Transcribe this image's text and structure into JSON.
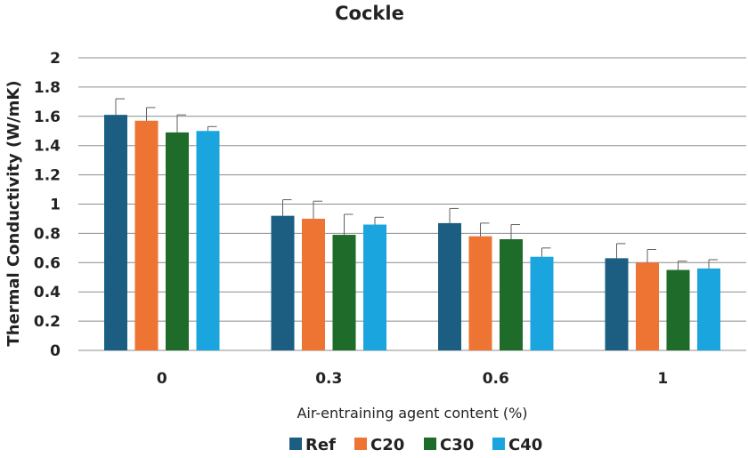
{
  "chart_data": {
    "type": "bar",
    "title": "Cockle",
    "xlabel": "Air-entraining agent content (%)",
    "ylabel": "Thermal Conductivity (W/mK)",
    "ylim": [
      0,
      2
    ],
    "yticks": [
      "0",
      "0.2",
      "0.4",
      "0.6",
      "0.8",
      "1",
      "1.2",
      "1.4",
      "1.6",
      "1.8",
      "2"
    ],
    "grid": true,
    "legend_position": "bottom",
    "categories": [
      "0",
      "0.3",
      "0.6",
      "1"
    ],
    "series": [
      {
        "name": "Ref",
        "color": "#1b5e82",
        "values": [
          1.61,
          0.92,
          0.87,
          0.63
        ],
        "errors": [
          0.11,
          0.11,
          0.1,
          0.1
        ]
      },
      {
        "name": "C20",
        "color": "#ed7432",
        "values": [
          1.57,
          0.9,
          0.78,
          0.6
        ],
        "errors": [
          0.09,
          0.12,
          0.09,
          0.09
        ]
      },
      {
        "name": "C30",
        "color": "#1e6b2a",
        "values": [
          1.49,
          0.79,
          0.76,
          0.55
        ],
        "errors": [
          0.12,
          0.14,
          0.1,
          0.06
        ]
      },
      {
        "name": "C40",
        "color": "#1ba5df",
        "values": [
          1.5,
          0.86,
          0.64,
          0.56
        ],
        "errors": [
          0.03,
          0.05,
          0.06,
          0.06
        ]
      }
    ]
  }
}
